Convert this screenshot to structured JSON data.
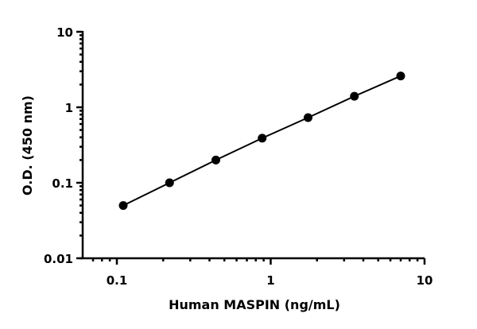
{
  "chart_data": {
    "type": "line",
    "title": "",
    "xlabel": "Human MASPIN (ng/mL)",
    "ylabel": "O.D. (450 nm)",
    "xscale": "log",
    "yscale": "log",
    "xlim": [
      0.061,
      10
    ],
    "ylim": [
      0.01,
      10
    ],
    "x_ticks": [
      0.1,
      1,
      10
    ],
    "x_tick_labels": [
      "0.1",
      "1",
      "10"
    ],
    "y_ticks": [
      0.01,
      0.1,
      1,
      10
    ],
    "y_tick_labels": [
      "0.01",
      "0.1",
      "1",
      "10"
    ],
    "grid": false,
    "legend": "none",
    "series": [
      {
        "x": [
          0.11,
          0.22,
          0.44,
          0.88,
          1.75,
          3.5,
          7
        ],
        "y": [
          0.05,
          0.1,
          0.2,
          0.39,
          0.73,
          1.4,
          2.6
        ],
        "marker": "circle",
        "color": "#000000"
      }
    ]
  }
}
